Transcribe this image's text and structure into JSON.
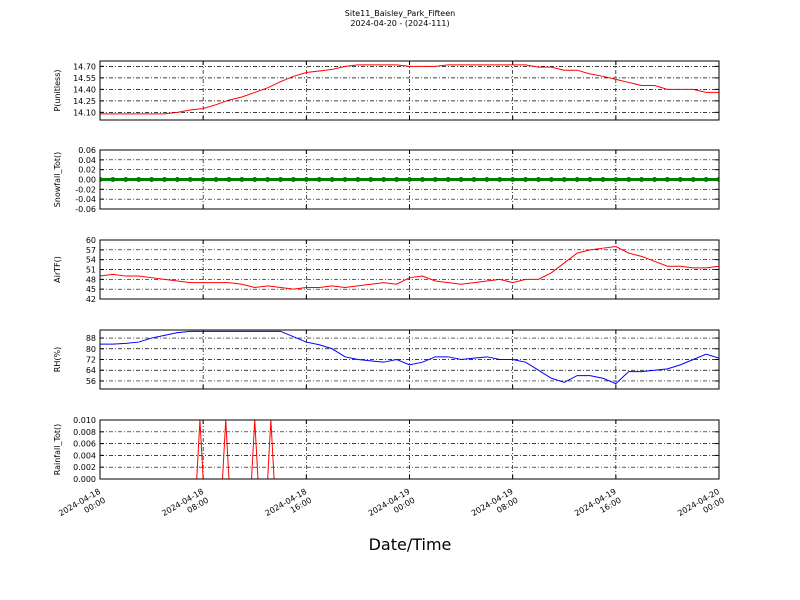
{
  "chart_data": [
    {
      "type": "line",
      "title": "Site11_Baisley_Park_Fifteen",
      "subtitle": "2024-04-20 - (2024-111)",
      "y_label": "P(unitless)",
      "color": "#ff0000",
      "x": [
        "2024-04-18 00:00",
        "2024-04-18 01:00",
        "2024-04-18 02:00",
        "2024-04-18 03:00",
        "2024-04-18 04:00",
        "2024-04-18 05:00",
        "2024-04-18 06:00",
        "2024-04-18 07:00",
        "2024-04-18 08:00",
        "2024-04-18 09:00",
        "2024-04-18 10:00",
        "2024-04-18 11:00",
        "2024-04-18 12:00",
        "2024-04-18 13:00",
        "2024-04-18 14:00",
        "2024-04-18 15:00",
        "2024-04-18 16:00",
        "2024-04-18 17:00",
        "2024-04-18 18:00",
        "2024-04-18 19:00",
        "2024-04-18 20:00",
        "2024-04-18 21:00",
        "2024-04-18 22:00",
        "2024-04-18 23:00",
        "2024-04-19 00:00",
        "2024-04-19 01:00",
        "2024-04-19 02:00",
        "2024-04-19 03:00",
        "2024-04-19 04:00",
        "2024-04-19 05:00",
        "2024-04-19 06:00",
        "2024-04-19 07:00",
        "2024-04-19 08:00",
        "2024-04-19 09:00",
        "2024-04-19 10:00",
        "2024-04-19 11:00",
        "2024-04-19 12:00",
        "2024-04-19 13:00",
        "2024-04-19 14:00",
        "2024-04-19 15:00",
        "2024-04-19 16:00",
        "2024-04-19 17:00",
        "2024-04-19 18:00",
        "2024-04-19 19:00",
        "2024-04-19 20:00",
        "2024-04-19 21:00",
        "2024-04-19 22:00",
        "2024-04-19 23:00",
        "2024-04-20 00:00"
      ],
      "values": [
        14.08,
        14.08,
        14.08,
        14.08,
        14.08,
        14.08,
        14.1,
        14.13,
        14.15,
        14.2,
        14.26,
        14.3,
        14.36,
        14.42,
        14.5,
        14.57,
        14.62,
        14.64,
        14.66,
        14.7,
        14.72,
        14.72,
        14.72,
        14.72,
        14.7,
        14.7,
        14.7,
        14.72,
        14.72,
        14.72,
        14.72,
        14.72,
        14.72,
        14.72,
        14.69,
        14.69,
        14.65,
        14.65,
        14.6,
        14.57,
        14.53,
        14.49,
        14.45,
        14.45,
        14.4,
        14.4,
        14.4,
        14.36,
        14.36
      ],
      "ylim": [
        14.0,
        14.77
      ],
      "yticks": [
        {
          "value": 14.1,
          "label": "14.10"
        },
        14.25,
        {
          "value": 14.4,
          "label": "14.40"
        },
        14.55,
        {
          "value": 14.7,
          "label": "14.70"
        }
      ],
      "grid": true
    },
    {
      "type": "line-markers",
      "y_label": "Snowfall_Tot()",
      "color": "#008000",
      "x": [
        "2024-04-18 00:00",
        "2024-04-18 01:00",
        "2024-04-18 02:00",
        "2024-04-18 03:00",
        "2024-04-18 04:00",
        "2024-04-18 05:00",
        "2024-04-18 06:00",
        "2024-04-18 07:00",
        "2024-04-18 08:00",
        "2024-04-18 09:00",
        "2024-04-18 10:00",
        "2024-04-18 11:00",
        "2024-04-18 12:00",
        "2024-04-18 13:00",
        "2024-04-18 14:00",
        "2024-04-18 15:00",
        "2024-04-18 16:00",
        "2024-04-18 17:00",
        "2024-04-18 18:00",
        "2024-04-18 19:00",
        "2024-04-18 20:00",
        "2024-04-18 21:00",
        "2024-04-18 22:00",
        "2024-04-18 23:00",
        "2024-04-19 00:00",
        "2024-04-19 01:00",
        "2024-04-19 02:00",
        "2024-04-19 03:00",
        "2024-04-19 04:00",
        "2024-04-19 05:00",
        "2024-04-19 06:00",
        "2024-04-19 07:00",
        "2024-04-19 08:00",
        "2024-04-19 09:00",
        "2024-04-19 10:00",
        "2024-04-19 11:00",
        "2024-04-19 12:00",
        "2024-04-19 13:00",
        "2024-04-19 14:00",
        "2024-04-19 15:00",
        "2024-04-19 16:00",
        "2024-04-19 17:00",
        "2024-04-19 18:00",
        "2024-04-19 19:00",
        "2024-04-19 20:00",
        "2024-04-19 21:00",
        "2024-04-19 22:00",
        "2024-04-19 23:00",
        "2024-04-20 00:00"
      ],
      "values": [
        0,
        0,
        0,
        0,
        0,
        0,
        0,
        0,
        0,
        0,
        0,
        0,
        0,
        0,
        0,
        0,
        0,
        0,
        0,
        0,
        0,
        0,
        0,
        0,
        0,
        0,
        0,
        0,
        0,
        0,
        0,
        0,
        0,
        0,
        0,
        0,
        0,
        0,
        0,
        0,
        0,
        0,
        0,
        0,
        0,
        0,
        0,
        0,
        0
      ],
      "ylim": [
        -0.06,
        0.06
      ],
      "yticks": [
        -0.06,
        -0.04,
        -0.02,
        {
          "value": 0,
          "label": "0.00"
        },
        0.02,
        0.04,
        0.06
      ],
      "grid": true
    },
    {
      "type": "line",
      "y_label": "AirTF()",
      "color": "#ff0000",
      "x": [
        "2024-04-18 00:00",
        "2024-04-18 01:00",
        "2024-04-18 02:00",
        "2024-04-18 03:00",
        "2024-04-18 04:00",
        "2024-04-18 05:00",
        "2024-04-18 06:00",
        "2024-04-18 07:00",
        "2024-04-18 08:00",
        "2024-04-18 09:00",
        "2024-04-18 10:00",
        "2024-04-18 11:00",
        "2024-04-18 12:00",
        "2024-04-18 13:00",
        "2024-04-18 14:00",
        "2024-04-18 15:00",
        "2024-04-18 16:00",
        "2024-04-18 17:00",
        "2024-04-18 18:00",
        "2024-04-18 19:00",
        "2024-04-18 20:00",
        "2024-04-18 21:00",
        "2024-04-18 22:00",
        "2024-04-18 23:00",
        "2024-04-19 00:00",
        "2024-04-19 01:00",
        "2024-04-19 02:00",
        "2024-04-19 03:00",
        "2024-04-19 04:00",
        "2024-04-19 05:00",
        "2024-04-19 06:00",
        "2024-04-19 07:00",
        "2024-04-19 08:00",
        "2024-04-19 09:00",
        "2024-04-19 10:00",
        "2024-04-19 11:00",
        "2024-04-19 12:00",
        "2024-04-19 13:00",
        "2024-04-19 14:00",
        "2024-04-19 15:00",
        "2024-04-19 16:00",
        "2024-04-19 17:00",
        "2024-04-19 18:00",
        "2024-04-19 19:00",
        "2024-04-19 20:00",
        "2024-04-19 21:00",
        "2024-04-19 22:00",
        "2024-04-19 23:00",
        "2024-04-20 00:00"
      ],
      "values": [
        49,
        49.5,
        49,
        49,
        48.5,
        48,
        47.5,
        47,
        47,
        47,
        47,
        46.5,
        45.5,
        46,
        45.5,
        45,
        45.5,
        45.5,
        46,
        45.5,
        46,
        46.5,
        47,
        46.5,
        48.5,
        49,
        47.5,
        47,
        46.5,
        47,
        47.5,
        48,
        47,
        48,
        48,
        50,
        53,
        56,
        57,
        57.5,
        58,
        56,
        55,
        53.5,
        52,
        52,
        51.5,
        51.5,
        52
      ],
      "ylim": [
        42,
        60
      ],
      "yticks": [
        42,
        45,
        48,
        51,
        54,
        57,
        60
      ],
      "grid": true
    },
    {
      "type": "line",
      "y_label": "RH(%)",
      "color": "#0000ff",
      "x": [
        "2024-04-18 00:00",
        "2024-04-18 01:00",
        "2024-04-18 02:00",
        "2024-04-18 03:00",
        "2024-04-18 04:00",
        "2024-04-18 05:00",
        "2024-04-18 06:00",
        "2024-04-18 07:00",
        "2024-04-18 08:00",
        "2024-04-18 09:00",
        "2024-04-18 10:00",
        "2024-04-18 11:00",
        "2024-04-18 12:00",
        "2024-04-18 13:00",
        "2024-04-18 14:00",
        "2024-04-18 15:00",
        "2024-04-18 16:00",
        "2024-04-18 17:00",
        "2024-04-18 18:00",
        "2024-04-18 19:00",
        "2024-04-18 20:00",
        "2024-04-18 21:00",
        "2024-04-18 22:00",
        "2024-04-18 23:00",
        "2024-04-19 00:00",
        "2024-04-19 01:00",
        "2024-04-19 02:00",
        "2024-04-19 03:00",
        "2024-04-19 04:00",
        "2024-04-19 05:00",
        "2024-04-19 06:00",
        "2024-04-19 07:00",
        "2024-04-19 08:00",
        "2024-04-19 09:00",
        "2024-04-19 10:00",
        "2024-04-19 11:00",
        "2024-04-19 12:00",
        "2024-04-19 13:00",
        "2024-04-19 14:00",
        "2024-04-19 15:00",
        "2024-04-19 16:00",
        "2024-04-19 17:00",
        "2024-04-19 18:00",
        "2024-04-19 19:00",
        "2024-04-19 20:00",
        "2024-04-19 21:00",
        "2024-04-19 22:00",
        "2024-04-19 23:00",
        "2024-04-20 00:00"
      ],
      "values": [
        83.5,
        83.5,
        84,
        85,
        88,
        90,
        92,
        93,
        93,
        93,
        93,
        93,
        93,
        93,
        93,
        89,
        85,
        83,
        80,
        74,
        72,
        71,
        70,
        72,
        68,
        70,
        74,
        74,
        72,
        73,
        74,
        72,
        72,
        70,
        64,
        58,
        55,
        60,
        60,
        58,
        54,
        63,
        63,
        64,
        65,
        68,
        72,
        76,
        73
      ],
      "ylim": [
        50,
        94
      ],
      "yticks": [
        56,
        64,
        72,
        80,
        88
      ],
      "grid": true
    },
    {
      "type": "line",
      "y_label": "Rainfall_Tot()",
      "x_label": "Date/Time",
      "color": "#ff0000",
      "x": [
        "2024-04-18 00:00",
        "2024-04-18 07:30",
        "2024-04-18 07:45",
        "2024-04-18 08:00",
        "2024-04-18 09:30",
        "2024-04-18 09:45",
        "2024-04-18 10:00",
        "2024-04-18 11:45",
        "2024-04-18 12:00",
        "2024-04-18 12:15",
        "2024-04-18 13:00",
        "2024-04-18 13:15",
        "2024-04-18 13:30",
        "2024-04-20 00:00"
      ],
      "values": [
        0,
        0,
        0.01,
        0,
        0,
        0.01,
        0,
        0,
        0.01,
        0,
        0,
        0.01,
        0,
        0
      ],
      "ylim": [
        0,
        0.01
      ],
      "yticks": [
        {
          "value": 0,
          "label": "0.000"
        },
        0.002,
        0.004,
        0.006,
        0.008,
        {
          "value": 0.01,
          "label": "0.010"
        }
      ],
      "grid": true,
      "xlim": [
        "2024-04-18 00:00",
        "2024-04-20 00:00"
      ],
      "xticks": [
        "2024-04-18 00:00",
        "2024-04-18 08:00",
        "2024-04-18 16:00",
        "2024-04-19 00:00",
        "2024-04-19 08:00",
        "2024-04-19 16:00",
        "2024-04-20 00:00"
      ]
    }
  ]
}
